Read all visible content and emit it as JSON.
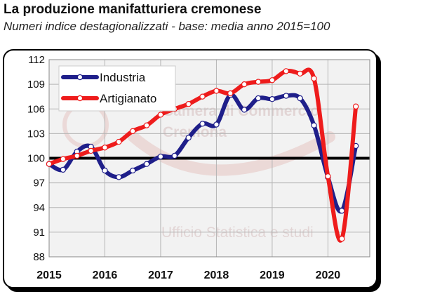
{
  "title": "La produzione manifatturiera cremonese",
  "subtitle": "Numeri indice destagionalizzati - base: media anno 2015=100",
  "watermark": {
    "line1": "Camera di Commercio",
    "line2": "Cremona",
    "line3": "Ufficio Statistica e studi"
  },
  "colors": {
    "industria": "#1f1f8a",
    "artigianato": "#ee1c1c",
    "baseline": "#000000",
    "grid": "#b5b5b5",
    "plot_background": "#f2f2f2"
  },
  "chart_data": {
    "type": "line",
    "title": "La produzione manifatturiera cremonese",
    "subtitle": "Numeri indice destagionalizzati - base: media anno 2015=100",
    "xlabel": "",
    "ylabel": "",
    "xlim": [
      2015,
      2020.75
    ],
    "ylim": [
      88,
      112
    ],
    "y_ticks": [
      88,
      91,
      94,
      97,
      100,
      103,
      106,
      109,
      112
    ],
    "x_tick_labels": [
      "2015",
      "2016",
      "2017",
      "2018",
      "2019",
      "2020"
    ],
    "x_tick_values": [
      2015,
      2016,
      2017,
      2018,
      2019,
      2020
    ],
    "reference_line": 100,
    "grid": true,
    "legend_position": "top-left",
    "series": [
      {
        "name": "Industria",
        "color_key": "industria",
        "points": [
          [
            2015.0,
            99.3
          ],
          [
            2015.25,
            98.6
          ],
          [
            2015.5,
            100.8
          ],
          [
            2015.75,
            101.4
          ],
          [
            2016.0,
            98.5
          ],
          [
            2016.25,
            97.7
          ],
          [
            2016.5,
            98.5
          ],
          [
            2016.75,
            99.3
          ],
          [
            2017.0,
            100.2
          ],
          [
            2017.25,
            100.3
          ],
          [
            2017.5,
            102.5
          ],
          [
            2017.75,
            104.2
          ],
          [
            2018.0,
            104.1
          ],
          [
            2018.25,
            107.7
          ],
          [
            2018.5,
            105.9
          ],
          [
            2018.75,
            107.3
          ],
          [
            2019.0,
            107.2
          ],
          [
            2019.25,
            107.6
          ],
          [
            2019.5,
            107.3
          ],
          [
            2019.75,
            104.0
          ],
          [
            2020.0,
            97.7
          ],
          [
            2020.25,
            93.6
          ],
          [
            2020.5,
            101.5
          ]
        ]
      },
      {
        "name": "Artigianato",
        "color_key": "artigianato",
        "points": [
          [
            2015.0,
            99.3
          ],
          [
            2015.25,
            99.9
          ],
          [
            2015.5,
            100.3
          ],
          [
            2015.75,
            100.9
          ],
          [
            2016.0,
            101.3
          ],
          [
            2016.25,
            102.0
          ],
          [
            2016.5,
            103.3
          ],
          [
            2016.75,
            104.0
          ],
          [
            2017.0,
            105.3
          ],
          [
            2017.25,
            106.0
          ],
          [
            2017.5,
            106.6
          ],
          [
            2017.75,
            107.5
          ],
          [
            2018.0,
            108.2
          ],
          [
            2018.25,
            107.9
          ],
          [
            2018.5,
            109.0
          ],
          [
            2018.75,
            109.3
          ],
          [
            2019.0,
            109.5
          ],
          [
            2019.25,
            110.6
          ],
          [
            2019.5,
            110.3
          ],
          [
            2019.75,
            109.7
          ],
          [
            2020.0,
            97.8
          ],
          [
            2020.25,
            90.2
          ],
          [
            2020.5,
            106.3
          ]
        ]
      }
    ]
  }
}
